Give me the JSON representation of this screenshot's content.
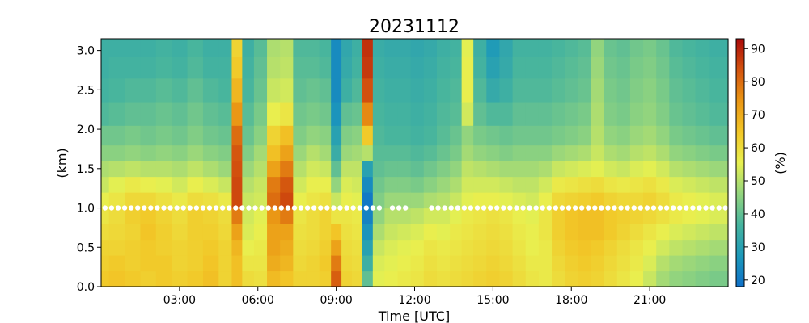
{
  "chart_data": {
    "type": "heatmap",
    "title": "20231112",
    "xlabel": "Time [UTC]",
    "ylabel": "(km)",
    "colorbar_label": "(%)",
    "xlim_hours": [
      0,
      24
    ],
    "ylim": [
      0.0,
      3.15
    ],
    "clim": [
      18,
      93
    ],
    "colormap": "rainbow-like (blue → green → yellow → orange → red)",
    "x_ticks": [
      {
        "hour": 3,
        "label": "03:00"
      },
      {
        "hour": 6,
        "label": "06:00"
      },
      {
        "hour": 9,
        "label": "09:00"
      },
      {
        "hour": 12,
        "label": "12:00"
      },
      {
        "hour": 15,
        "label": "15:00"
      },
      {
        "hour": 18,
        "label": "18:00"
      },
      {
        "hour": 21,
        "label": "21:00"
      }
    ],
    "y_ticks": [
      {
        "value": 0.0,
        "label": "0.0"
      },
      {
        "value": 0.5,
        "label": "0.5"
      },
      {
        "value": 1.0,
        "label": "1.0"
      },
      {
        "value": 1.5,
        "label": "1.5"
      },
      {
        "value": 2.0,
        "label": "2.0"
      },
      {
        "value": 2.5,
        "label": "2.5"
      },
      {
        "value": 3.0,
        "label": "3.0"
      }
    ],
    "colorbar_ticks": [
      {
        "value": 20,
        "label": "20"
      },
      {
        "value": 30,
        "label": "30"
      },
      {
        "value": 40,
        "label": "40"
      },
      {
        "value": 50,
        "label": "50"
      },
      {
        "value": 60,
        "label": "60"
      },
      {
        "value": 70,
        "label": "70"
      },
      {
        "value": 80,
        "label": "80"
      },
      {
        "value": 90,
        "label": "90"
      }
    ],
    "height_levels_km": [
      0.1,
      0.3,
      0.5,
      0.7,
      0.9,
      1.1,
      1.3,
      1.5,
      1.7,
      1.9,
      2.2,
      2.5,
      2.8,
      3.05
    ],
    "profiles": [
      {
        "hour": 0.0,
        "values": [
          64,
          63,
          62,
          60,
          58,
          56,
          52,
          49,
          45,
          42,
          38,
          36,
          35,
          35
        ]
      },
      {
        "hour": 0.6,
        "values": [
          65,
          64,
          62,
          61,
          60,
          58,
          55,
          50,
          45,
          42,
          39,
          37,
          36,
          35
        ]
      },
      {
        "hour": 1.2,
        "values": [
          64,
          63,
          63,
          62,
          63,
          61,
          57,
          51,
          46,
          43,
          40,
          38,
          36,
          35
        ]
      },
      {
        "hour": 1.8,
        "values": [
          63,
          64,
          64,
          65,
          64,
          61,
          56,
          50,
          45,
          42,
          40,
          38,
          36,
          35
        ]
      },
      {
        "hour": 2.4,
        "values": [
          64,
          64,
          63,
          63,
          62,
          59,
          55,
          50,
          46,
          43,
          41,
          39,
          37,
          36
        ]
      },
      {
        "hour": 3.0,
        "values": [
          63,
          62,
          62,
          61,
          60,
          57,
          53,
          49,
          45,
          42,
          40,
          38,
          36,
          35
        ]
      },
      {
        "hour": 3.6,
        "values": [
          64,
          63,
          63,
          63,
          63,
          60,
          56,
          51,
          47,
          44,
          42,
          40,
          38,
          37
        ]
      },
      {
        "hour": 4.2,
        "values": [
          66,
          65,
          64,
          63,
          62,
          59,
          54,
          49,
          45,
          42,
          40,
          38,
          36,
          35
        ]
      },
      {
        "hour": 4.8,
        "values": [
          62,
          62,
          62,
          61,
          60,
          57,
          52,
          47,
          44,
          41,
          39,
          37,
          36,
          35
        ]
      },
      {
        "hour": 5.2,
        "values": [
          66,
          66,
          68,
          72,
          78,
          85,
          85,
          84,
          83,
          80,
          74,
          68,
          64,
          62
        ]
      },
      {
        "hour": 5.6,
        "values": [
          60,
          58,
          56,
          54,
          53,
          52,
          50,
          47,
          44,
          41,
          39,
          37,
          36,
          35
        ]
      },
      {
        "hour": 6.1,
        "values": [
          59,
          58,
          57,
          56,
          55,
          53,
          52,
          50,
          48,
          45,
          43,
          41,
          40,
          39
        ]
      },
      {
        "hour": 6.6,
        "values": [
          67,
          70,
          72,
          72,
          74,
          80,
          78,
          72,
          66,
          62,
          56,
          52,
          50,
          49
        ]
      },
      {
        "hour": 7.1,
        "values": [
          65,
          68,
          70,
          72,
          78,
          85,
          83,
          78,
          72,
          66,
          58,
          53,
          51,
          50
        ]
      },
      {
        "hour": 7.6,
        "values": [
          62,
          61,
          60,
          59,
          58,
          56,
          53,
          50,
          47,
          44,
          42,
          40,
          39,
          38
        ]
      },
      {
        "hour": 8.1,
        "values": [
          62,
          62,
          61,
          60,
          60,
          58,
          56,
          53,
          50,
          46,
          43,
          41,
          39,
          38
        ]
      },
      {
        "hour": 8.6,
        "values": [
          63,
          64,
          63,
          62,
          62,
          59,
          56,
          52,
          48,
          45,
          42,
          40,
          38,
          37
        ]
      },
      {
        "hour": 9.0,
        "values": [
          82,
          78,
          72,
          65,
          58,
          52,
          46,
          40,
          34,
          30,
          26,
          24,
          24,
          24
        ]
      },
      {
        "hour": 9.4,
        "values": [
          62,
          61,
          60,
          59,
          58,
          56,
          54,
          51,
          47,
          44,
          40,
          35,
          33,
          32
        ]
      },
      {
        "hour": 9.8,
        "values": [
          61,
          60,
          59,
          58,
          57,
          55,
          53,
          51,
          48,
          45,
          41,
          38,
          36,
          35
        ]
      },
      {
        "hour": 10.2,
        "values": [
          40,
          35,
          30,
          26,
          22,
          20,
          24,
          30,
          50,
          64,
          76,
          84,
          87,
          88
        ]
      },
      {
        "hour": 10.6,
        "values": [
          55,
          54,
          52,
          49,
          46,
          44,
          42,
          40,
          39,
          38,
          37,
          36,
          35,
          34
        ]
      },
      {
        "hour": 11.1,
        "values": [
          56,
          55,
          54,
          52,
          50,
          47,
          44,
          41,
          39,
          37,
          36,
          35,
          34,
          33
        ]
      },
      {
        "hour": 11.6,
        "values": [
          57,
          56,
          55,
          53,
          50,
          47,
          44,
          41,
          39,
          37,
          36,
          35,
          34,
          33
        ]
      },
      {
        "hour": 12.1,
        "values": [
          58,
          57,
          56,
          54,
          51,
          47,
          43,
          40,
          38,
          36,
          35,
          34,
          33,
          32
        ]
      },
      {
        "hour": 12.6,
        "values": [
          60,
          59,
          58,
          56,
          53,
          49,
          45,
          42,
          39,
          37,
          36,
          35,
          34,
          33
        ]
      },
      {
        "hour": 13.1,
        "values": [
          59,
          58,
          57,
          55,
          53,
          50,
          47,
          44,
          41,
          39,
          38,
          37,
          36,
          35
        ]
      },
      {
        "hour": 13.6,
        "values": [
          60,
          59,
          58,
          57,
          55,
          52,
          49,
          46,
          43,
          41,
          39,
          38,
          37,
          36
        ]
      },
      {
        "hour": 14.0,
        "values": [
          61,
          60,
          59,
          58,
          57,
          55,
          53,
          51,
          48,
          46,
          53,
          56,
          56,
          55
        ]
      },
      {
        "hour": 14.5,
        "values": [
          62,
          61,
          60,
          59,
          58,
          56,
          53,
          50,
          46,
          43,
          40,
          38,
          36,
          35
        ]
      },
      {
        "hour": 15.0,
        "values": [
          63,
          62,
          61,
          60,
          59,
          56,
          53,
          49,
          45,
          42,
          38,
          33,
          30,
          28
        ]
      },
      {
        "hour": 15.5,
        "values": [
          62,
          61,
          60,
          59,
          58,
          55,
          52,
          48,
          44,
          41,
          38,
          35,
          33,
          32
        ]
      },
      {
        "hour": 16.0,
        "values": [
          60,
          59,
          58,
          57,
          56,
          54,
          51,
          48,
          45,
          42,
          40,
          38,
          37,
          36
        ]
      },
      {
        "hour": 16.5,
        "values": [
          58,
          57,
          56,
          56,
          55,
          53,
          51,
          48,
          45,
          42,
          40,
          38,
          37,
          36
        ]
      },
      {
        "hour": 17.0,
        "values": [
          57,
          57,
          57,
          58,
          58,
          56,
          53,
          49,
          45,
          42,
          40,
          38,
          37,
          36
        ]
      },
      {
        "hour": 17.5,
        "values": [
          60,
          61,
          62,
          63,
          63,
          61,
          57,
          52,
          47,
          43,
          41,
          39,
          38,
          37
        ]
      },
      {
        "hour": 18.0,
        "values": [
          62,
          63,
          64,
          65,
          65,
          62,
          58,
          53,
          48,
          44,
          42,
          40,
          39,
          38
        ]
      },
      {
        "hour": 18.5,
        "values": [
          63,
          64,
          65,
          66,
          66,
          63,
          59,
          54,
          49,
          45,
          43,
          41,
          40,
          39
        ]
      },
      {
        "hour": 19.0,
        "values": [
          62,
          63,
          64,
          66,
          66,
          64,
          60,
          55,
          52,
          50,
          49,
          48,
          47,
          46
        ]
      },
      {
        "hour": 19.5,
        "values": [
          60,
          61,
          62,
          64,
          64,
          62,
          58,
          53,
          49,
          46,
          44,
          43,
          42,
          41
        ]
      },
      {
        "hour": 20.0,
        "values": [
          58,
          59,
          60,
          62,
          63,
          61,
          57,
          52,
          48,
          45,
          43,
          42,
          41,
          40
        ]
      },
      {
        "hour": 20.5,
        "values": [
          56,
          57,
          58,
          60,
          62,
          61,
          58,
          54,
          50,
          47,
          45,
          44,
          43,
          42
        ]
      },
      {
        "hour": 21.0,
        "values": [
          52,
          54,
          56,
          58,
          61,
          62,
          59,
          55,
          51,
          48,
          46,
          45,
          44,
          43
        ]
      },
      {
        "hour": 21.5,
        "values": [
          48,
          50,
          53,
          56,
          59,
          60,
          57,
          53,
          49,
          46,
          44,
          43,
          42,
          41
        ]
      },
      {
        "hour": 22.0,
        "values": [
          46,
          48,
          51,
          54,
          57,
          57,
          54,
          50,
          46,
          43,
          41,
          40,
          39,
          38
        ]
      },
      {
        "hour": 22.5,
        "values": [
          45,
          47,
          50,
          53,
          56,
          56,
          53,
          49,
          45,
          42,
          40,
          39,
          38,
          37
        ]
      },
      {
        "hour": 23.0,
        "values": [
          44,
          46,
          49,
          52,
          55,
          55,
          52,
          48,
          44,
          41,
          39,
          38,
          37,
          36
        ]
      },
      {
        "hour": 23.6,
        "values": [
          43,
          45,
          48,
          51,
          54,
          54,
          51,
          47,
          43,
          40,
          38,
          37,
          36,
          35
        ]
      }
    ],
    "marker_series": {
      "height_km": 1.0,
      "color": "#ffffff",
      "hours": [
        0.15,
        0.4,
        0.65,
        0.9,
        1.15,
        1.4,
        1.65,
        1.9,
        2.15,
        2.4,
        2.65,
        2.9,
        3.15,
        3.4,
        3.65,
        3.9,
        4.15,
        4.4,
        4.65,
        4.9,
        5.15,
        5.4,
        5.65,
        5.9,
        6.15,
        6.4,
        6.65,
        6.9,
        7.15,
        7.4,
        7.65,
        7.9,
        8.15,
        8.4,
        8.65,
        8.9,
        9.15,
        9.4,
        9.65,
        9.9,
        10.15,
        10.4,
        10.65,
        11.15,
        11.4,
        11.65,
        12.65,
        12.9,
        13.15,
        13.4,
        13.65,
        13.9,
        14.15,
        14.4,
        14.65,
        14.9,
        15.15,
        15.4,
        15.65,
        15.9,
        16.15,
        16.4,
        16.65,
        16.9,
        17.15,
        17.4,
        17.65,
        17.9,
        18.15,
        18.4,
        18.65,
        18.9,
        19.15,
        19.4,
        19.65,
        19.9,
        20.15,
        20.4,
        20.65,
        20.9,
        21.15,
        21.4,
        21.65,
        21.9,
        22.15,
        22.4,
        22.65,
        22.9,
        23.15,
        23.4,
        23.65,
        23.9
      ]
    }
  }
}
